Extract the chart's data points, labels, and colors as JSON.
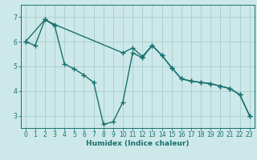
{
  "xlabel": "Humidex (Indice chaleur)",
  "bg_color": "#cce8e8",
  "line_color": "#1a7070",
  "grid_color": "#b0d0d0",
  "xlim": [
    -0.5,
    23.5
  ],
  "ylim": [
    2.5,
    7.5
  ],
  "yticks": [
    3,
    4,
    5,
    6,
    7
  ],
  "xticks": [
    0,
    1,
    2,
    3,
    4,
    5,
    6,
    7,
    8,
    9,
    10,
    11,
    12,
    13,
    14,
    15,
    16,
    17,
    18,
    19,
    20,
    21,
    22,
    23
  ],
  "series1_x": [
    0,
    2,
    3,
    10,
    11,
    12,
    13,
    14,
    15,
    16,
    17,
    18,
    19,
    20,
    21,
    22,
    23
  ],
  "series1_y": [
    6.0,
    6.9,
    6.7,
    5.55,
    5.75,
    5.4,
    5.85,
    5.45,
    4.95,
    4.5,
    4.4,
    4.35,
    4.3,
    4.2,
    4.1,
    3.85,
    3.0
  ],
  "series2_x": [
    0,
    1,
    2,
    3,
    4,
    5,
    6,
    7,
    8,
    9,
    10,
    11,
    12,
    13,
    14,
    15,
    16,
    17,
    18,
    19,
    20,
    21,
    22,
    23
  ],
  "series2_y": [
    6.0,
    5.85,
    6.9,
    6.65,
    5.1,
    4.9,
    4.65,
    4.35,
    2.65,
    2.75,
    3.55,
    5.55,
    5.35,
    5.85,
    5.45,
    4.95,
    4.5,
    4.4,
    4.35,
    4.3,
    4.2,
    4.1,
    3.85,
    3.0
  ],
  "marker_size": 4,
  "line_width": 1.0
}
